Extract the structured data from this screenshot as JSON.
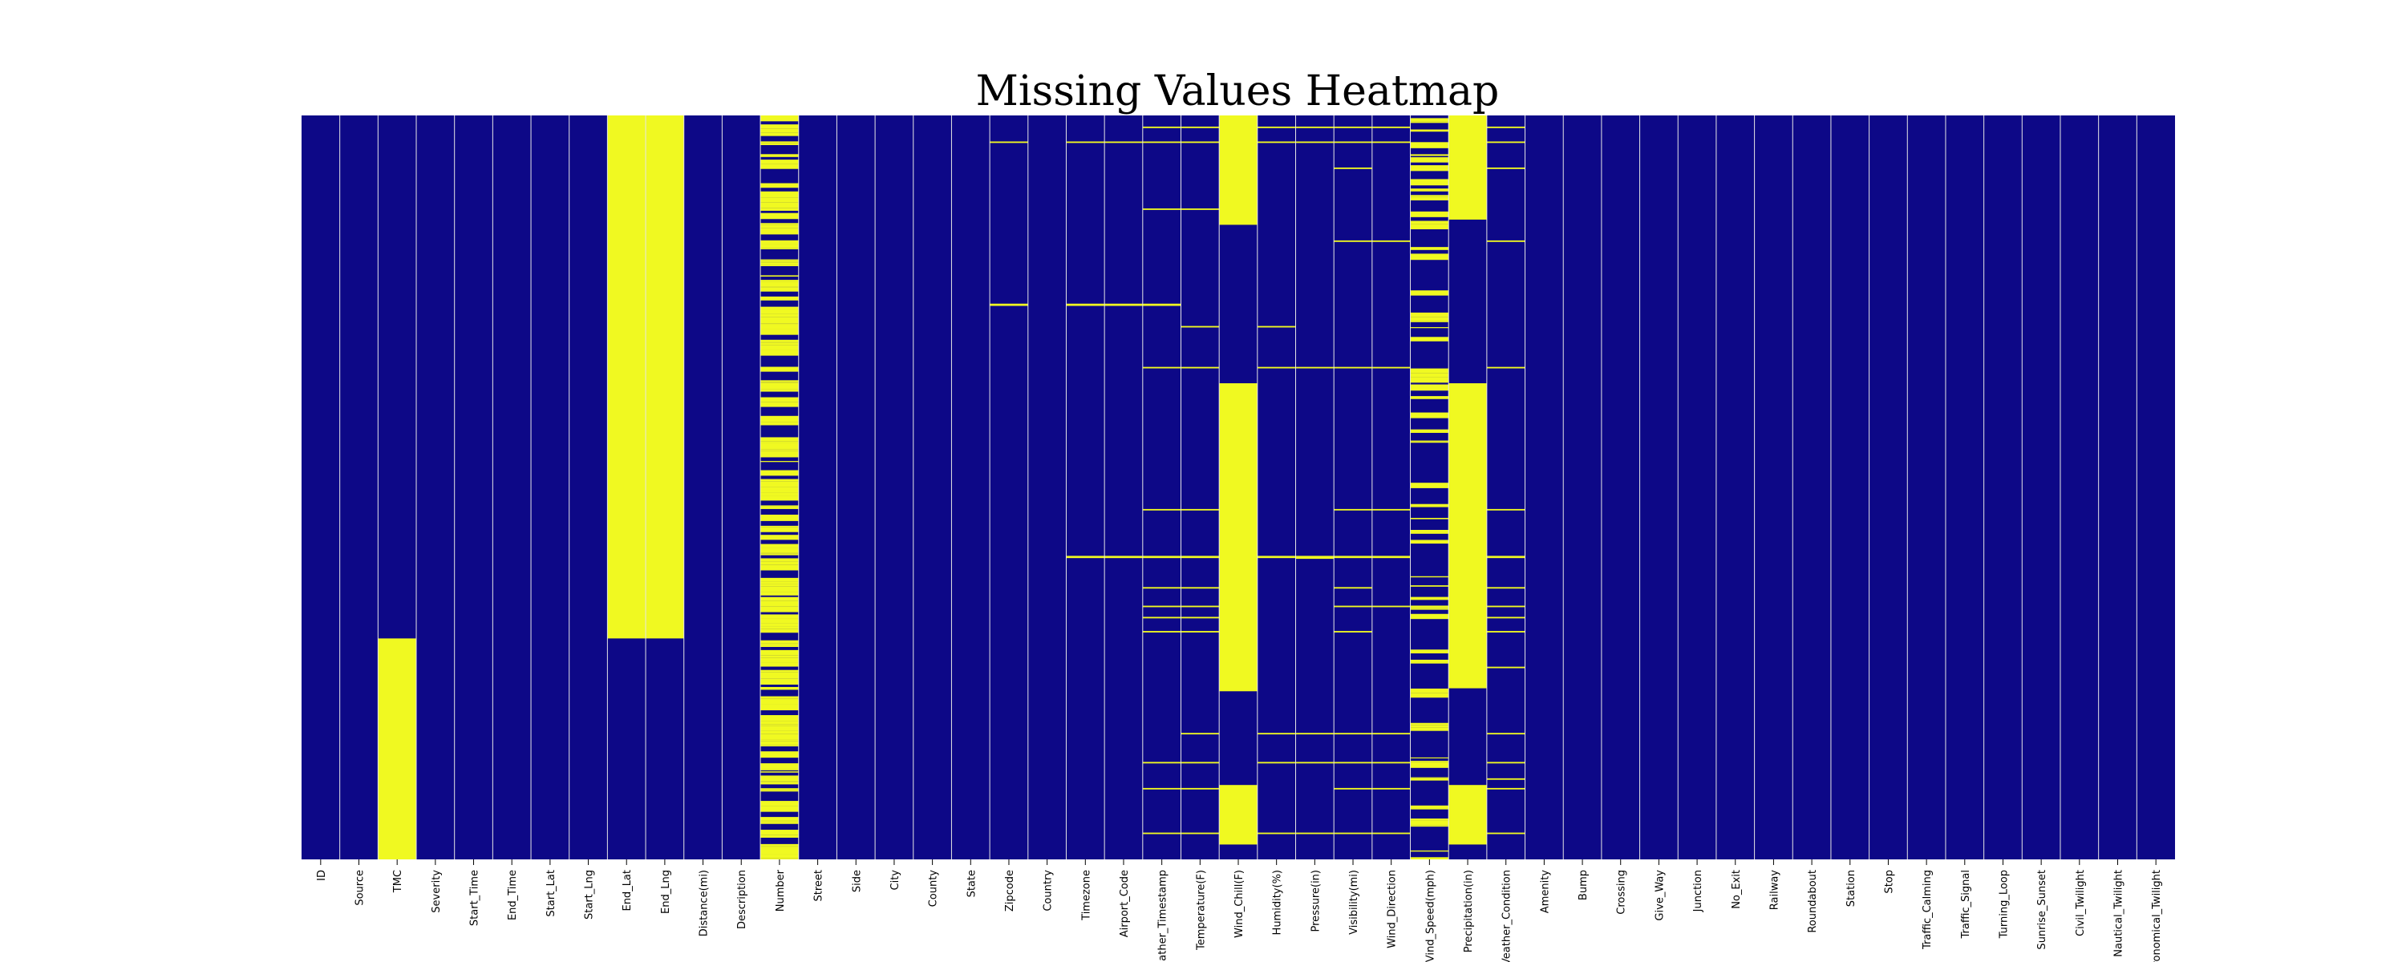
{
  "chart_data": {
    "type": "heatmap",
    "title": "Missing Values Heatmap",
    "xlabel": "",
    "ylabel": "",
    "grid": true,
    "legend": "none",
    "colors": {
      "present": "#0d0887",
      "missing": "#f0f921",
      "gridline": "#e6e6e6"
    },
    "columns": [
      "ID",
      "Source",
      "TMC",
      "Severity",
      "Start_Time",
      "End_Time",
      "Start_Lat",
      "Start_Lng",
      "End_Lat",
      "End_Lng",
      "Distance(mi)",
      "Description",
      "Number",
      "Street",
      "Side",
      "City",
      "County",
      "State",
      "Zipcode",
      "Country",
      "Timezone",
      "Airport_Code",
      "Weather_Timestamp",
      "Temperature(F)",
      "Wind_Chill(F)",
      "Humidity(%)",
      "Pressure(in)",
      "Visibility(mi)",
      "Wind_Direction",
      "Wind_Speed(mph)",
      "Precipitation(in)",
      "Weather_Condition",
      "Amenity",
      "Bump",
      "Crossing",
      "Give_Way",
      "Junction",
      "No_Exit",
      "Railway",
      "Roundabout",
      "Station",
      "Stop",
      "Traffic_Calming",
      "Traffic_Signal",
      "Turning_Loop",
      "Sunrise_Sunset",
      "Civil_Twilight",
      "Nautical_Twilight",
      "Astronomical_Twilight"
    ],
    "tick_labels": [
      "ID",
      "Source",
      "TMC",
      "Severity",
      "Start_Time",
      "End_Time",
      "Start_Lat",
      "Start_Lng",
      "End_Lat",
      "End_Lng",
      "Distance(mi)",
      "Description",
      "Number",
      "Street",
      "Side",
      "City",
      "County",
      "State",
      "Zipcode",
      "Country",
      "Timezone",
      "Airport_Code",
      "ather_Timestamp",
      "Temperature(F)",
      "Wind_Chill(F)",
      "Humidity(%)",
      "Pressure(in)",
      "Visibility(mi)",
      "Wind_Direction",
      "Vind_Speed(mph)",
      "Precipitation(in)",
      "Veather_Condition",
      "Amenity",
      "Bump",
      "Crossing",
      "Give_Way",
      "Junction",
      "No_Exit",
      "Railway",
      "Roundabout",
      "Station",
      "Stop",
      "Traffic_Calming",
      "Traffic_Signal",
      "Turning_Loop",
      "Sunrise_Sunset",
      "Civil_Twilight",
      "Nautical_Twilight",
      "ronomical_Twilight"
    ],
    "row_fraction_note": "missing ranges are [start, end] fractions of the row index (0 = first row, 1 = last row)",
    "missing": {
      "TMC": [
        [
          0.703,
          1.0
        ]
      ],
      "End_Lat": [
        [
          0.0,
          0.703
        ]
      ],
      "End_Lng": [
        [
          0.0,
          0.703
        ]
      ],
      "Number": {
        "pattern": "dense",
        "range": [
          0.0,
          1.0
        ],
        "density": 0.68
      },
      "Zipcode": [
        [
          0.035,
          0.037
        ],
        [
          0.253,
          0.256
        ]
      ],
      "Timezone": [
        [
          0.035,
          0.037
        ],
        [
          0.253,
          0.256
        ],
        [
          0.592,
          0.595
        ]
      ],
      "Airport_Code": [
        [
          0.035,
          0.037
        ],
        [
          0.253,
          0.256
        ],
        [
          0.592,
          0.595
        ]
      ],
      "Weather_Timestamp": [
        [
          0.015,
          0.017
        ],
        [
          0.035,
          0.037
        ],
        [
          0.125,
          0.127
        ],
        [
          0.253,
          0.256
        ],
        [
          0.338,
          0.34
        ],
        [
          0.529,
          0.531
        ],
        [
          0.592,
          0.595
        ],
        [
          0.634,
          0.636
        ],
        [
          0.659,
          0.661
        ],
        [
          0.674,
          0.676
        ],
        [
          0.693,
          0.695
        ],
        [
          0.869,
          0.871
        ],
        [
          0.904,
          0.906
        ],
        [
          0.964,
          0.966
        ]
      ],
      "Temperature(F)": [
        [
          0.015,
          0.017
        ],
        [
          0.035,
          0.037
        ],
        [
          0.125,
          0.127
        ],
        [
          0.283,
          0.285
        ],
        [
          0.338,
          0.34
        ],
        [
          0.529,
          0.531
        ],
        [
          0.592,
          0.595
        ],
        [
          0.634,
          0.636
        ],
        [
          0.659,
          0.661
        ],
        [
          0.674,
          0.676
        ],
        [
          0.693,
          0.695
        ],
        [
          0.83,
          0.832
        ],
        [
          0.869,
          0.871
        ],
        [
          0.904,
          0.906
        ],
        [
          0.964,
          0.966
        ]
      ],
      "Wind_Chill(F)": [
        [
          0.0,
          0.147
        ],
        [
          0.36,
          0.774
        ],
        [
          0.9,
          0.98
        ]
      ],
      "Humidity(%)": [
        [
          0.015,
          0.017
        ],
        [
          0.035,
          0.037
        ],
        [
          0.283,
          0.285
        ],
        [
          0.338,
          0.34
        ],
        [
          0.592,
          0.595
        ],
        [
          0.83,
          0.832
        ],
        [
          0.869,
          0.871
        ],
        [
          0.964,
          0.966
        ]
      ],
      "Pressure(in)": [
        [
          0.015,
          0.017
        ],
        [
          0.035,
          0.037
        ],
        [
          0.338,
          0.34
        ],
        [
          0.592,
          0.596
        ],
        [
          0.83,
          0.832
        ],
        [
          0.869,
          0.871
        ],
        [
          0.964,
          0.966
        ]
      ],
      "Visibility(mi)": [
        [
          0.015,
          0.017
        ],
        [
          0.035,
          0.037
        ],
        [
          0.07,
          0.072
        ],
        [
          0.168,
          0.17
        ],
        [
          0.338,
          0.34
        ],
        [
          0.529,
          0.531
        ],
        [
          0.592,
          0.595
        ],
        [
          0.634,
          0.636
        ],
        [
          0.659,
          0.661
        ],
        [
          0.693,
          0.695
        ],
        [
          0.83,
          0.832
        ],
        [
          0.869,
          0.871
        ],
        [
          0.904,
          0.906
        ],
        [
          0.964,
          0.966
        ]
      ],
      "Wind_Direction": [
        [
          0.015,
          0.017
        ],
        [
          0.035,
          0.037
        ],
        [
          0.168,
          0.17
        ],
        [
          0.338,
          0.34
        ],
        [
          0.529,
          0.531
        ],
        [
          0.592,
          0.595
        ],
        [
          0.659,
          0.661
        ],
        [
          0.83,
          0.832
        ],
        [
          0.869,
          0.871
        ],
        [
          0.904,
          0.906
        ],
        [
          0.964,
          0.966
        ]
      ],
      "Wind_Speed(mph)": {
        "pattern": "dense",
        "range": [
          0.0,
          1.0
        ],
        "density": 0.3
      },
      "Precipitation(in)": [
        [
          0.0,
          0.14
        ],
        [
          0.36,
          0.77
        ],
        [
          0.9,
          0.98
        ]
      ],
      "Weather_Condition": [
        [
          0.015,
          0.017
        ],
        [
          0.035,
          0.037
        ],
        [
          0.07,
          0.072
        ],
        [
          0.168,
          0.17
        ],
        [
          0.338,
          0.34
        ],
        [
          0.529,
          0.531
        ],
        [
          0.592,
          0.595
        ],
        [
          0.634,
          0.636
        ],
        [
          0.659,
          0.661
        ],
        [
          0.674,
          0.676
        ],
        [
          0.693,
          0.695
        ],
        [
          0.741,
          0.743
        ],
        [
          0.83,
          0.832
        ],
        [
          0.869,
          0.871
        ],
        [
          0.891,
          0.893
        ],
        [
          0.904,
          0.906
        ],
        [
          0.964,
          0.966
        ]
      ]
    }
  }
}
